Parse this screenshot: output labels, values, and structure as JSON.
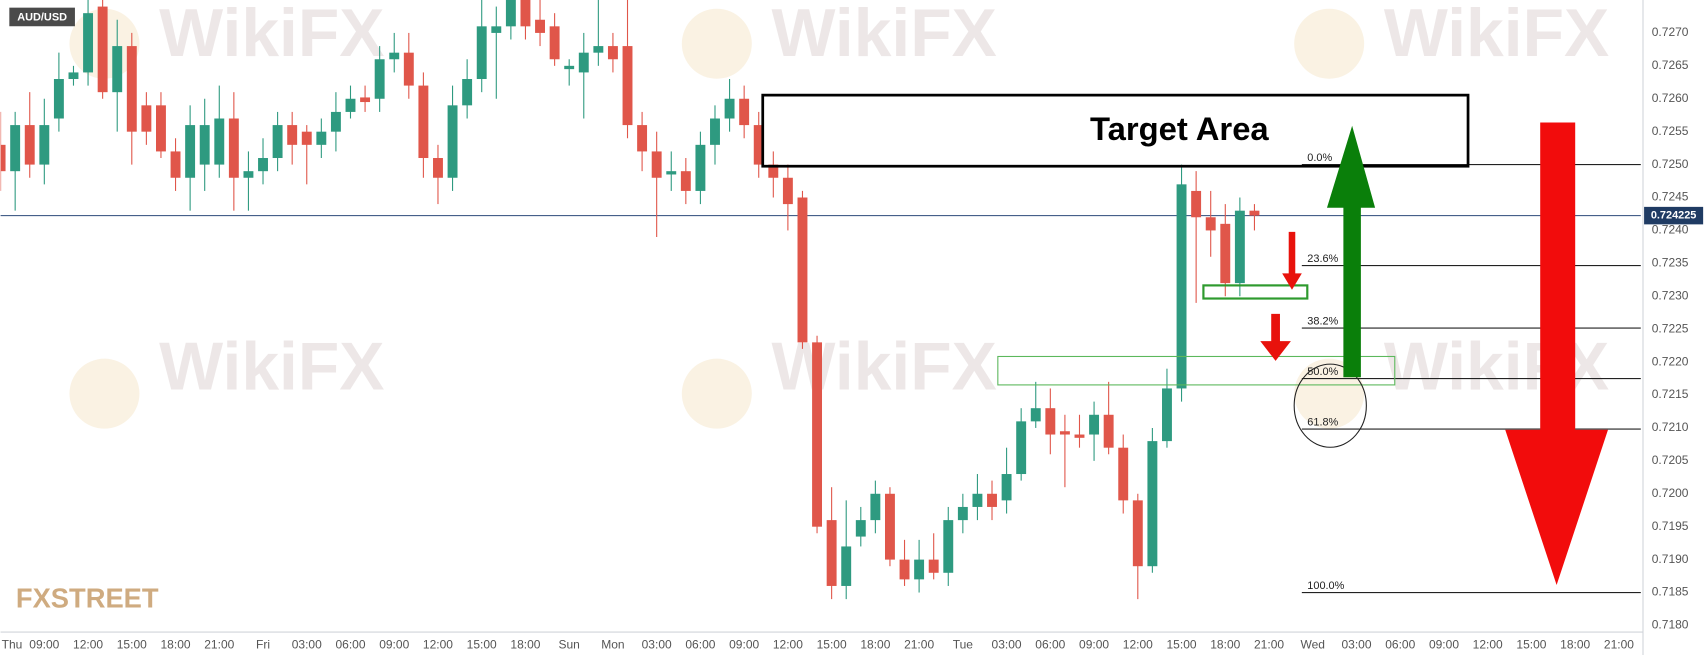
{
  "chart_data": {
    "type": "candlestick",
    "title": "AUD/USD",
    "x": [
      0,
      1,
      2,
      3,
      4,
      5,
      6,
      7,
      8,
      9,
      10,
      11,
      12,
      13,
      14,
      15,
      16,
      17,
      18,
      19,
      20,
      21,
      22,
      23,
      24,
      25,
      26,
      27,
      28,
      29,
      30,
      31,
      32,
      33,
      34,
      35,
      36,
      37,
      38,
      39,
      40,
      41,
      42,
      43,
      44,
      45,
      46,
      47,
      48,
      49,
      50,
      51,
      52,
      53,
      54,
      55,
      56,
      57,
      58,
      59,
      60,
      61,
      62,
      63,
      64,
      65,
      66,
      67,
      68,
      69,
      70,
      71,
      72,
      73,
      74,
      75,
      76,
      77,
      78,
      79,
      80,
      81,
      82,
      83,
      84,
      85,
      86
    ],
    "open": [
      0.7253,
      0.7249,
      0.7256,
      0.725,
      0.7257,
      0.7263,
      0.7264,
      0.7274,
      0.7261,
      0.7268,
      0.7259,
      0.7259,
      0.7252,
      0.7248,
      0.725,
      0.725,
      0.7257,
      0.7248,
      0.7249,
      0.7251,
      0.7256,
      0.7255,
      0.7253,
      0.7255,
      0.7258,
      0.72602,
      0.726,
      0.7266,
      0.7267,
      0.7262,
      0.7251,
      0.7248,
      0.7259,
      0.7263,
      0.727,
      0.7271,
      0.7276,
      0.7272,
      0.7271,
      0.72645,
      0.7264,
      0.7267,
      0.7268,
      0.7268,
      0.7256,
      0.7252,
      0.72485,
      0.7249,
      0.7246,
      0.7253,
      0.7257,
      0.726,
      0.7256,
      0.725,
      0.7248,
      0.7245,
      0.7223,
      0.7196,
      0.7186,
      0.71935,
      0.7196,
      0.72,
      0.719,
      0.7187,
      0.719,
      0.7188,
      0.7196,
      0.7198,
      0.72,
      0.7199,
      0.7203,
      0.7211,
      0.7213,
      0.72095,
      0.7209,
      0.7209,
      0.7212,
      0.7207,
      0.7199,
      0.7189,
      0.7208,
      0.7216,
      0.7246,
      0.7242,
      0.7241,
      0.7232,
      0.7243
    ],
    "high": [
      0.7258,
      0.7258,
      0.7261,
      0.726,
      0.7267,
      0.7265,
      0.7275,
      0.7275,
      0.7272,
      0.727,
      0.7261,
      0.7261,
      0.7254,
      0.7259,
      0.726,
      0.7262,
      0.7261,
      0.7252,
      0.7254,
      0.7258,
      0.7258,
      0.7256,
      0.7257,
      0.7261,
      0.7262,
      0.7262,
      0.7268,
      0.727,
      0.727,
      0.7264,
      0.7253,
      0.7262,
      0.7266,
      0.7275,
      0.7274,
      0.7277,
      0.7278,
      0.7275,
      0.7273,
      0.7266,
      0.727,
      0.7275,
      0.727,
      0.7275,
      0.7258,
      0.7255,
      0.7252,
      0.7251,
      0.7255,
      0.7259,
      0.7263,
      0.7262,
      0.7258,
      0.7252,
      0.725,
      0.7246,
      0.7224,
      0.7201,
      0.7199,
      0.7198,
      0.7202,
      0.7201,
      0.7193,
      0.7193,
      0.7194,
      0.7198,
      0.72,
      0.7203,
      0.7202,
      0.7207,
      0.7213,
      0.7217,
      0.7216,
      0.7212,
      0.7212,
      0.7214,
      0.7217,
      0.7209,
      0.72,
      0.721,
      0.7219,
      0.725,
      0.7249,
      0.7246,
      0.7244,
      0.7245,
      0.7244
    ],
    "low": [
      0.7246,
      0.7243,
      0.7248,
      0.7247,
      0.7255,
      0.7262,
      0.7262,
      0.726,
      0.7255,
      0.725,
      0.7253,
      0.7251,
      0.7246,
      0.7243,
      0.7246,
      0.7248,
      0.7243,
      0.7243,
      0.7247,
      0.7249,
      0.725,
      0.7247,
      0.7251,
      0.7252,
      0.7257,
      0.7258,
      0.7258,
      0.7264,
      0.726,
      0.7248,
      0.7244,
      0.7246,
      0.7257,
      0.7261,
      0.726,
      0.7269,
      0.7269,
      0.7268,
      0.7265,
      0.7262,
      0.7257,
      0.7265,
      0.7264,
      0.7254,
      0.7249,
      0.7239,
      0.7246,
      0.7244,
      0.7244,
      0.725,
      0.7255,
      0.7254,
      0.7248,
      0.7245,
      0.724,
      0.7222,
      0.7194,
      0.7184,
      0.7184,
      0.7192,
      0.7194,
      0.7189,
      0.7186,
      0.7185,
      0.7187,
      0.7186,
      0.7194,
      0.7196,
      0.7196,
      0.7197,
      0.7202,
      0.721,
      0.7206,
      0.7201,
      0.7207,
      0.7205,
      0.7206,
      0.7197,
      0.7184,
      0.7188,
      0.7207,
      0.7214,
      0.7229,
      0.7236,
      0.723,
      0.723,
      0.724
    ],
    "close": [
      0.7249,
      0.7256,
      0.725,
      0.7256,
      0.7263,
      0.7264,
      0.7273,
      0.7261,
      0.7268,
      0.7255,
      0.7255,
      0.7252,
      0.7248,
      0.7256,
      0.7256,
      0.7257,
      0.7248,
      0.7249,
      0.7251,
      0.7256,
      0.7253,
      0.7253,
      0.7255,
      0.7258,
      0.726,
      0.72595,
      0.7266,
      0.7267,
      0.7262,
      0.7251,
      0.7248,
      0.7259,
      0.7263,
      0.7271,
      0.7271,
      0.7275,
      0.7271,
      0.727,
      0.7266,
      0.7265,
      0.7267,
      0.7268,
      0.7266,
      0.7256,
      0.7252,
      0.7248,
      0.7249,
      0.7246,
      0.7253,
      0.7257,
      0.726,
      0.7256,
      0.725,
      0.7248,
      0.7244,
      0.7223,
      0.7195,
      0.7186,
      0.7192,
      0.7196,
      0.72,
      0.719,
      0.7187,
      0.719,
      0.7188,
      0.7196,
      0.7198,
      0.72,
      0.7198,
      0.7203,
      0.7211,
      0.7213,
      0.7209,
      0.7209,
      0.72085,
      0.7212,
      0.7207,
      0.7199,
      0.7189,
      0.7208,
      0.7216,
      0.7247,
      0.7242,
      0.724,
      0.7232,
      0.7243,
      0.724225
    ],
    "up_color": "#2e9a80",
    "down_color": "#e0564a",
    "xlim": [
      0,
      112.5
    ],
    "ylim": [
      0.7179,
      0.7275
    ],
    "xticks": [
      {
        "value": 0,
        "label": "Thu"
      },
      {
        "value": 3,
        "label": "09:00"
      },
      {
        "value": 6,
        "label": "12:00"
      },
      {
        "value": 9,
        "label": "15:00"
      },
      {
        "value": 12,
        "label": "18:00"
      },
      {
        "value": 15,
        "label": "21:00"
      },
      {
        "value": 18,
        "label": "Fri"
      },
      {
        "value": 21,
        "label": "03:00"
      },
      {
        "value": 24,
        "label": "06:00"
      },
      {
        "value": 27,
        "label": "09:00"
      },
      {
        "value": 30,
        "label": "12:00"
      },
      {
        "value": 33,
        "label": "15:00"
      },
      {
        "value": 36,
        "label": "18:00"
      },
      {
        "value": 39,
        "label": "Sun"
      },
      {
        "value": 42,
        "label": "Mon"
      },
      {
        "value": 45,
        "label": "03:00"
      },
      {
        "value": 48,
        "label": "06:00"
      },
      {
        "value": 51,
        "label": "09:00"
      },
      {
        "value": 54,
        "label": "12:00"
      },
      {
        "value": 57,
        "label": "15:00"
      },
      {
        "value": 60,
        "label": "18:00"
      },
      {
        "value": 63,
        "label": "21:00"
      },
      {
        "value": 66,
        "label": "Tue"
      },
      {
        "value": 69,
        "label": "03:00"
      },
      {
        "value": 72,
        "label": "06:00"
      },
      {
        "value": 75,
        "label": "09:00"
      },
      {
        "value": 78,
        "label": "12:00"
      },
      {
        "value": 81,
        "label": "15:00"
      },
      {
        "value": 84,
        "label": "18:00"
      },
      {
        "value": 87,
        "label": "21:00"
      },
      {
        "value": 90,
        "label": "Wed"
      },
      {
        "value": 93,
        "label": "03:00"
      },
      {
        "value": 96,
        "label": "06:00"
      },
      {
        "value": 99,
        "label": "09:00"
      },
      {
        "value": 102,
        "label": "12:00"
      },
      {
        "value": 105,
        "label": "15:00"
      },
      {
        "value": 108,
        "label": "18:00"
      },
      {
        "value": 111,
        "label": "21:00"
      }
    ],
    "yticks": [
      {
        "value": 0.718,
        "label": "0.7180"
      },
      0.7185,
      {
        "value": 0.719,
        "label": "0.7190"
      },
      0.7195,
      {
        "value": 0.72,
        "label": "0.7200"
      },
      0.7205,
      {
        "value": 0.721,
        "label": "0.7210"
      },
      0.7215,
      {
        "value": 0.722,
        "label": "0.7220"
      },
      0.7225,
      {
        "value": 0.723,
        "label": "0.7230"
      },
      0.7235,
      {
        "value": 0.724,
        "label": "0.7240"
      },
      0.7245,
      {
        "value": 0.725,
        "label": "0.7250"
      },
      0.7255,
      {
        "value": 0.726,
        "label": "0.7260"
      },
      0.7265,
      {
        "value": 0.727,
        "label": "0.7270"
      }
    ],
    "grid": true,
    "last_price": 0.724225,
    "fib": {
      "high": 0.725,
      "low": 0.7185,
      "levels": [
        {
          "value": 0,
          "label": "0.0%"
        },
        {
          "value": 23.6,
          "label": "23.6%"
        },
        {
          "value": 38.2,
          "label": "38.2%"
        },
        {
          "value": 50,
          "label": "50.0%"
        },
        {
          "value": 61.8,
          "label": "61.8%"
        },
        {
          "value": 100,
          "label": "100.0%"
        }
      ]
    },
    "target_area": "Target Area",
    "source": "FXSTREET",
    "watermark": "WikiFX"
  }
}
